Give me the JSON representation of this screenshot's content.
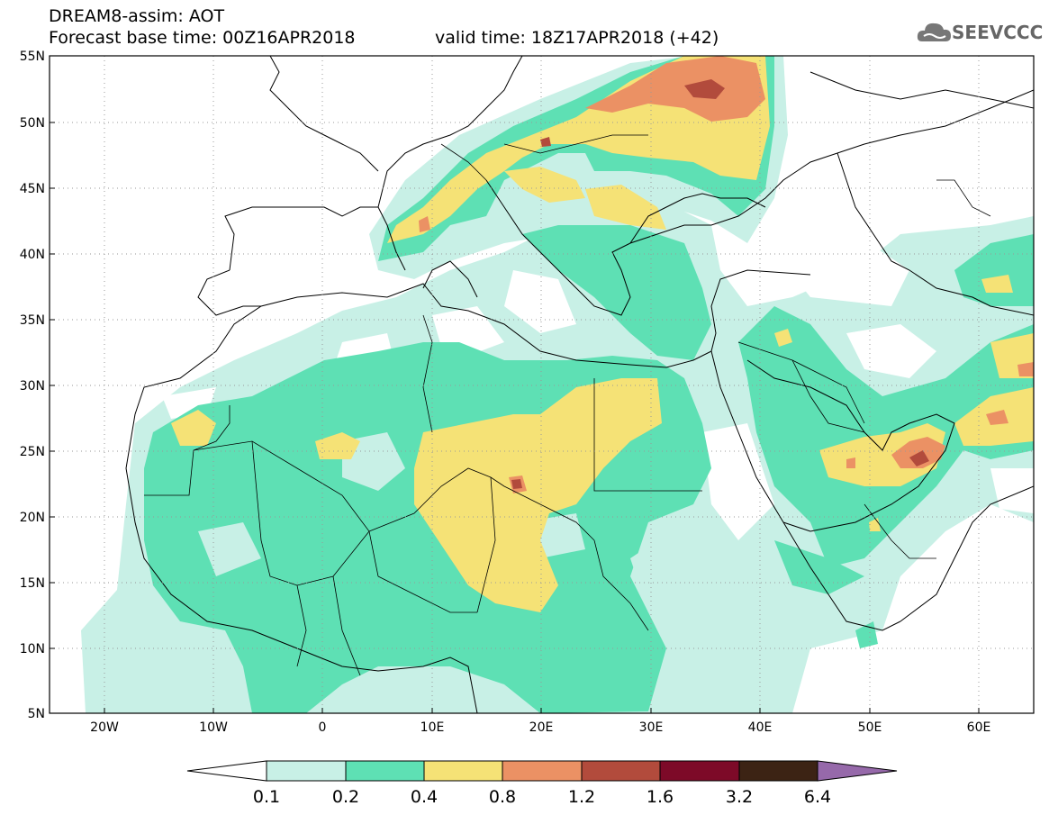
{
  "header": {
    "line1": "DREAM8-assim: AOT",
    "line2": "Forecast base time: 00Z16APR2018",
    "line3": "valid time: 18Z17APR2018 (+42)"
  },
  "logo": {
    "text": "SEEVCCC",
    "icon": "cloud-icon"
  },
  "axes": {
    "lat_labels": [
      "55N",
      "50N",
      "45N",
      "40N",
      "35N",
      "30N",
      "25N",
      "20N",
      "15N",
      "10N",
      "5N"
    ],
    "lon_labels": [
      "20W",
      "10W",
      "0",
      "10E",
      "20E",
      "30E",
      "40E",
      "50E",
      "60E"
    ]
  },
  "colorbar": {
    "labels": [
      "0.1",
      "0.2",
      "0.4",
      "0.8",
      "1.2",
      "1.6",
      "3.2",
      "6.4"
    ],
    "colors": [
      "#c8f0e6",
      "#5ee0b4",
      "#f5e276",
      "#eb9164",
      "#b24b3c",
      "#7d0a28",
      "#3c2314",
      "#9669aa"
    ]
  },
  "map": {
    "variable": "AOT",
    "lat_range": [
      5,
      55
    ],
    "lon_range": [
      -25,
      65
    ]
  }
}
